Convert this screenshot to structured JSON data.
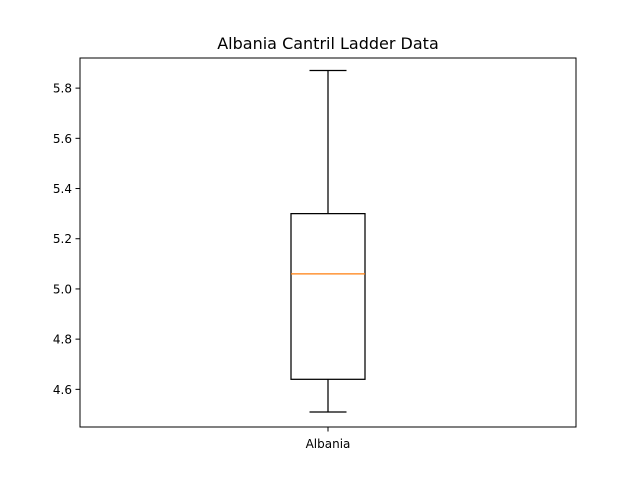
{
  "chart_data": {
    "type": "box",
    "title": "Albania Cantril Ladder Data",
    "xlabel": "",
    "ylabel": "",
    "ylim": [
      4.45,
      5.92
    ],
    "y_ticks": [
      "4.6",
      "4.8",
      "5.0",
      "5.2",
      "5.4",
      "5.6",
      "5.8"
    ],
    "y_tick_values": [
      4.6,
      4.8,
      5.0,
      5.2,
      5.4,
      5.6,
      5.8
    ],
    "categories": [
      "Albania"
    ],
    "boxes": [
      {
        "category": "Albania",
        "whisker_low": 4.51,
        "q1": 4.64,
        "median": 5.06,
        "q3": 5.3,
        "whisker_high": 5.87
      }
    ],
    "grid": false,
    "legend": "none"
  },
  "colors": {
    "box": "#000000",
    "median": "#ff7f0e",
    "axes": "#000000",
    "background": "#ffffff"
  }
}
